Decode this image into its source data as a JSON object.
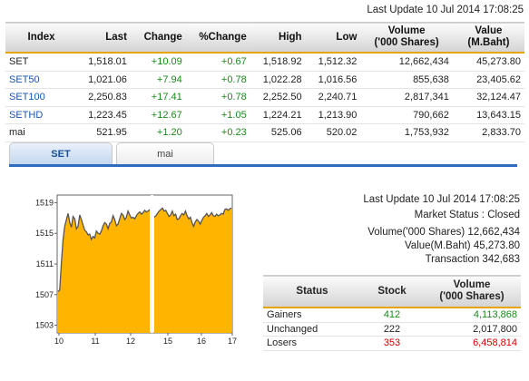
{
  "last_update_top": "Last Update 10 Jul 2014 17:08:25",
  "index_table": {
    "headers": [
      "Index",
      "Last",
      "Change",
      "%Change",
      "High",
      "Low",
      "Volume\n('000 Shares)",
      "Value\n(M.Baht)"
    ],
    "header_lines": {
      "volume_1": "Volume",
      "volume_2": "('000 Shares)",
      "value_1": "Value",
      "value_2": "(M.Baht)"
    },
    "rows": [
      {
        "name": "SET",
        "last": "1,518.01",
        "change": "+10.09",
        "pct": "+0.67",
        "high": "1,518.92",
        "low": "1,512.32",
        "volume": "12,662,434",
        "value": "45,273.80",
        "link": false
      },
      {
        "name": "SET50",
        "last": "1,021.06",
        "change": "+7.94",
        "pct": "+0.78",
        "high": "1,022.28",
        "low": "1,016.56",
        "volume": "855,638",
        "value": "23,405.62",
        "link": true
      },
      {
        "name": "SET100",
        "last": "2,250.83",
        "change": "+17.41",
        "pct": "+0.78",
        "high": "2,252.50",
        "low": "2,240.71",
        "volume": "2,817,341",
        "value": "32,124.47",
        "link": true
      },
      {
        "name": "SETHD",
        "last": "1,223.45",
        "change": "+12.67",
        "pct": "+1.05",
        "high": "1,224.21",
        "low": "1,213.90",
        "volume": "790,662",
        "value": "13,643.15",
        "link": true
      },
      {
        "name": "mai",
        "last": "521.95",
        "change": "+1.20",
        "pct": "+0.23",
        "high": "525.06",
        "low": "520.02",
        "volume": "1,753,932",
        "value": "2,833.70",
        "link": false
      }
    ]
  },
  "tabs": [
    {
      "label": "SET",
      "active": true
    },
    {
      "label": "mai",
      "active": false
    }
  ],
  "market_info": {
    "last_update": "Last Update 10 Jul 2014 17:08:25",
    "market_status": "Market Status : Closed",
    "volume": "Volume('000 Shares) 12,662,434",
    "value": "Value(M.Baht) 45,273.80",
    "transaction": "Transaction 342,683"
  },
  "status_table": {
    "headers": {
      "status": "Status",
      "stock": "Stock",
      "volume_1": "Volume",
      "volume_2": "('000 Shares)"
    },
    "rows": [
      {
        "status": "Gainers",
        "stock": "412",
        "volume": "4,113,868",
        "color": "#1a8a1a"
      },
      {
        "status": "Unchanged",
        "stock": "222",
        "volume": "2,017,800",
        "color": "#222222"
      },
      {
        "status": "Losers",
        "stock": "353",
        "volume": "6,458,814",
        "color": "#d40000"
      }
    ]
  },
  "chart_data": {
    "type": "area",
    "y_ticks": [
      "1519",
      "1515",
      "1511",
      "1507",
      "1503"
    ],
    "y_tick_values": [
      1519,
      1515,
      1511,
      1507,
      1503
    ],
    "x_ticks": [
      "10",
      "11",
      "12",
      "15",
      "16",
      "17"
    ],
    "ylim": [
      1502,
      1520
    ],
    "fill_color": "#ffb400",
    "line_color": "#555555",
    "series": [
      {
        "session": "morning",
        "values": [
          1507.4,
          1507.6,
          1511.2,
          1514.2,
          1515.9,
          1516.8,
          1517.6,
          1516.4,
          1515.8,
          1517.2,
          1516.9,
          1515.6,
          1515.9,
          1517.4,
          1516.8,
          1516.1,
          1515.4,
          1515.2,
          1514.8,
          1514.9,
          1514.2,
          1514.6,
          1514.4,
          1515.3,
          1515.0,
          1514.9,
          1515.3,
          1516.0,
          1516.4,
          1516.2,
          1515.6,
          1516.3,
          1516.5,
          1517.3,
          1516.8,
          1516.0,
          1516.2,
          1516.9,
          1517.6,
          1517.4,
          1516.8,
          1517.1,
          1517.9,
          1517.4,
          1517.0,
          1517.1,
          1516.9,
          1517.3,
          1517.6,
          1517.8,
          1517.5,
          1517.7,
          1518.0,
          1517.8,
          1517.9,
          1518.1
        ]
      },
      {
        "session": "afternoon",
        "values": [
          1517.1,
          1517.3,
          1517.6,
          1517.9,
          1518.1,
          1518.3,
          1517.9,
          1518.0,
          1517.6,
          1517.2,
          1517.4,
          1517.9,
          1517.3,
          1517.5,
          1516.8,
          1516.9,
          1517.3,
          1517.6,
          1517.4,
          1517.9,
          1517.3,
          1516.9,
          1517.1,
          1516.4,
          1515.9,
          1516.5,
          1516.8,
          1516.6,
          1516.2,
          1516.7,
          1517.1,
          1517.3,
          1517.6,
          1517.2,
          1517.4,
          1517.7,
          1517.3,
          1517.2,
          1517.5,
          1517.3,
          1517.4,
          1517.6,
          1517.5,
          1518.1,
          1518.2,
          1518.0,
          1518.2,
          1518.3
        ]
      }
    ]
  }
}
